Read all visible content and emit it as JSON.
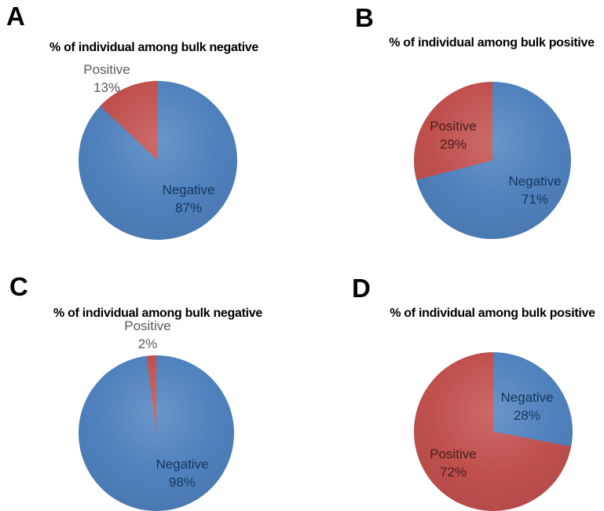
{
  "page": {
    "background": "#ffffff"
  },
  "colors": {
    "negative_slice": "#4F81BD",
    "positive_slice": "#C0504D",
    "title_text": "#000000",
    "outside_label_text": "#595959",
    "label_on_negative": "#17365D",
    "label_on_positive": "#4A201D"
  },
  "chart_data": [
    {
      "type": "pie",
      "panel_letter": "A",
      "title": "% of individual among bulk negative",
      "start_angle_deg": 0,
      "direction": "clockwise",
      "legend": "none",
      "slices": [
        {
          "label": "Negative",
          "value": 87,
          "display": "87%",
          "color": "#4F81BD",
          "label_placement": "inside"
        },
        {
          "label": "Positive",
          "value": 13,
          "display": "13%",
          "color": "#C0504D",
          "label_placement": "outside"
        }
      ]
    },
    {
      "type": "pie",
      "panel_letter": "B",
      "title": "% of individual among bulk positive",
      "start_angle_deg": 0,
      "direction": "clockwise",
      "legend": "none",
      "slices": [
        {
          "label": "Negative",
          "value": 71,
          "display": "71%",
          "color": "#4F81BD",
          "label_placement": "inside"
        },
        {
          "label": "Positive",
          "value": 29,
          "display": "29%",
          "color": "#C0504D",
          "label_placement": "inside"
        }
      ]
    },
    {
      "type": "pie",
      "panel_letter": "C",
      "title": "% of individual among bulk negative",
      "start_angle_deg": 0,
      "direction": "clockwise",
      "legend": "none",
      "slices": [
        {
          "label": "Negative",
          "value": 98,
          "display": "98%",
          "color": "#4F81BD",
          "label_placement": "inside"
        },
        {
          "label": "Positive",
          "value": 2,
          "display": "2%",
          "color": "#C0504D",
          "label_placement": "outside"
        }
      ]
    },
    {
      "type": "pie",
      "panel_letter": "D",
      "title": "% of individual among bulk positive",
      "start_angle_deg": 0,
      "direction": "clockwise",
      "legend": "none",
      "slices": [
        {
          "label": "Negative",
          "value": 28,
          "display": "28%",
          "color": "#4F81BD",
          "label_placement": "inside"
        },
        {
          "label": "Positive",
          "value": 72,
          "display": "72%",
          "color": "#C0504D",
          "label_placement": "inside"
        }
      ]
    }
  ]
}
